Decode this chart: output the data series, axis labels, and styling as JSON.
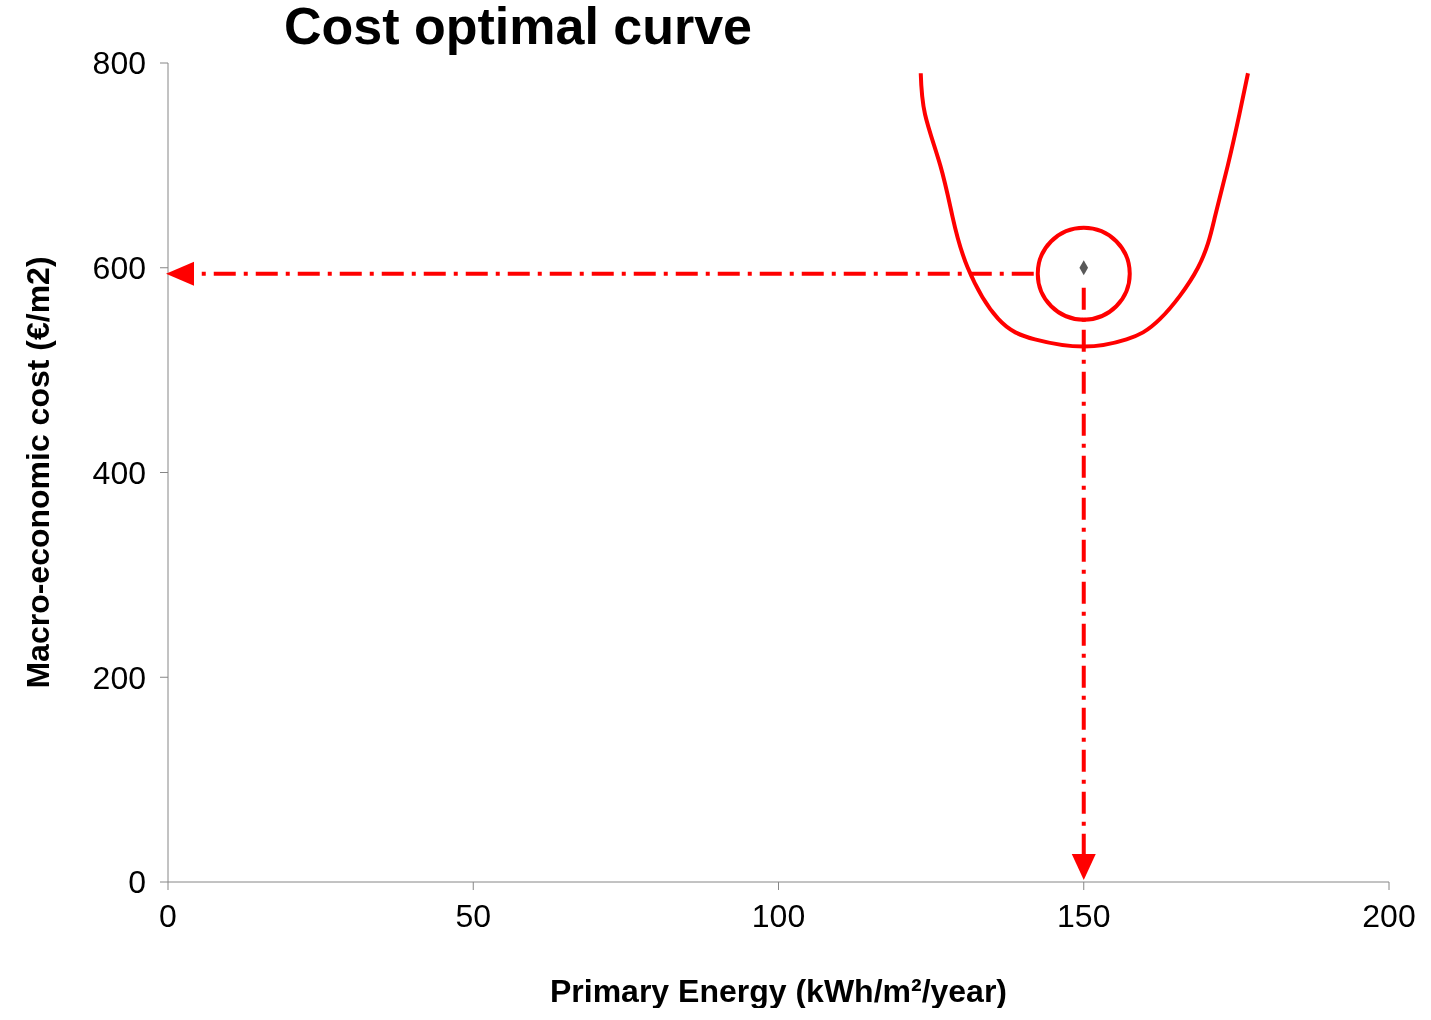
{
  "chart_data": {
    "type": "scatter",
    "title": "Cost optimal curve",
    "xlabel": "Primary Energy (kWh/m²/year)",
    "ylabel": "Macro-economic cost (€/m2)",
    "xlim": [
      0,
      200
    ],
    "xticks": [
      0,
      50,
      100,
      150,
      200
    ],
    "ylim": [
      0,
      800
    ],
    "yticks": [
      0,
      200,
      400,
      600,
      800
    ],
    "grid": false,
    "legend": false,
    "series": [
      {
        "type": "line",
        "color": "#ff0000",
        "marker": "none",
        "line_style": "solid",
        "x": [
          123.3,
          124,
          126.5,
          128.5,
          131,
          136,
          142,
          150,
          157,
          162.5,
          168.7,
          171.5,
          173.6,
          175.5,
          176.9
        ],
        "values": [
          790,
          750,
          700,
          650,
          600,
          550,
          530,
          523,
          530,
          550,
          600,
          650,
          700,
          750,
          790
        ]
      },
      {
        "color": "#595959",
        "marker": "diamond",
        "x": [
          150
        ],
        "values": [
          600
        ]
      }
    ]
  }
}
